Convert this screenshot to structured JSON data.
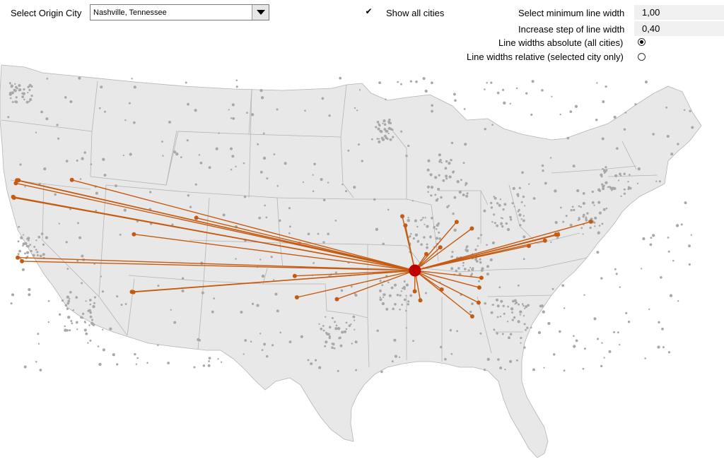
{
  "controls": {
    "origin_label": "Select Origin City",
    "origin_value": "Nashville, Tennessee",
    "show_all_label": "Show all cities",
    "show_all_checked": true,
    "min_width_label": "Select minimum line width",
    "min_width_value": "1,00",
    "step_label": "Increase step of line width",
    "step_value": "0,40",
    "abs_label": "Line widths absolute (all cities)",
    "rel_label": "Line widths relative (selected city only)",
    "selected_mode": "absolute"
  },
  "map": {
    "land_color": "#e8e8e8",
    "border_color": "#b4b4b4",
    "city_dot_color": "#a8a8a8",
    "route_color": "#c55a11",
    "origin_color": "#c00000",
    "origin": {
      "name": "Nashville, Tennessee",
      "lon": -86.78,
      "lat": 36.16
    },
    "destinations": [
      {
        "lon": -122.68,
        "lat": 45.52
      },
      {
        "lon": -122.33,
        "lat": 47.61
      },
      {
        "lon": -122.2,
        "lat": 47.61
      },
      {
        "lon": -122.44,
        "lat": 47.25
      },
      {
        "lon": -117.43,
        "lat": 47.66
      },
      {
        "lon": -122.6,
        "lat": 45.4
      },
      {
        "lon": -106.31,
        "lat": 42.85
      },
      {
        "lon": -111.89,
        "lat": 40.76
      },
      {
        "lon": -122.27,
        "lat": 37.8
      },
      {
        "lon": -121.89,
        "lat": 37.34
      },
      {
        "lon": -112.07,
        "lat": 33.45
      },
      {
        "lon": -111.93,
        "lat": 33.42
      },
      {
        "lon": -97.52,
        "lat": 35.47
      },
      {
        "lon": -97.33,
        "lat": 32.75
      },
      {
        "lon": -93.75,
        "lat": 32.52
      },
      {
        "lon": -87.91,
        "lat": 43.04
      },
      {
        "lon": -87.63,
        "lat": 41.88
      },
      {
        "lon": -83.05,
        "lat": 42.33
      },
      {
        "lon": -81.69,
        "lat": 41.5
      },
      {
        "lon": -84.51,
        "lat": 39.1
      },
      {
        "lon": -85.76,
        "lat": 38.25
      },
      {
        "lon": -80.84,
        "lat": 35.23
      },
      {
        "lon": -81.03,
        "lat": 34.0
      },
      {
        "lon": -84.39,
        "lat": 33.75
      },
      {
        "lon": -86.8,
        "lat": 33.52
      },
      {
        "lon": -81.09,
        "lat": 32.08
      },
      {
        "lon": -81.66,
        "lat": 30.33
      },
      {
        "lon": -86.3,
        "lat": 32.37
      },
      {
        "lon": -75.16,
        "lat": 39.95
      },
      {
        "lon": -74.17,
        "lat": 40.73
      },
      {
        "lon": -74.0,
        "lat": 40.71
      },
      {
        "lon": -71.06,
        "lat": 42.36
      },
      {
        "lon": -76.61,
        "lat": 39.29
      }
    ]
  }
}
